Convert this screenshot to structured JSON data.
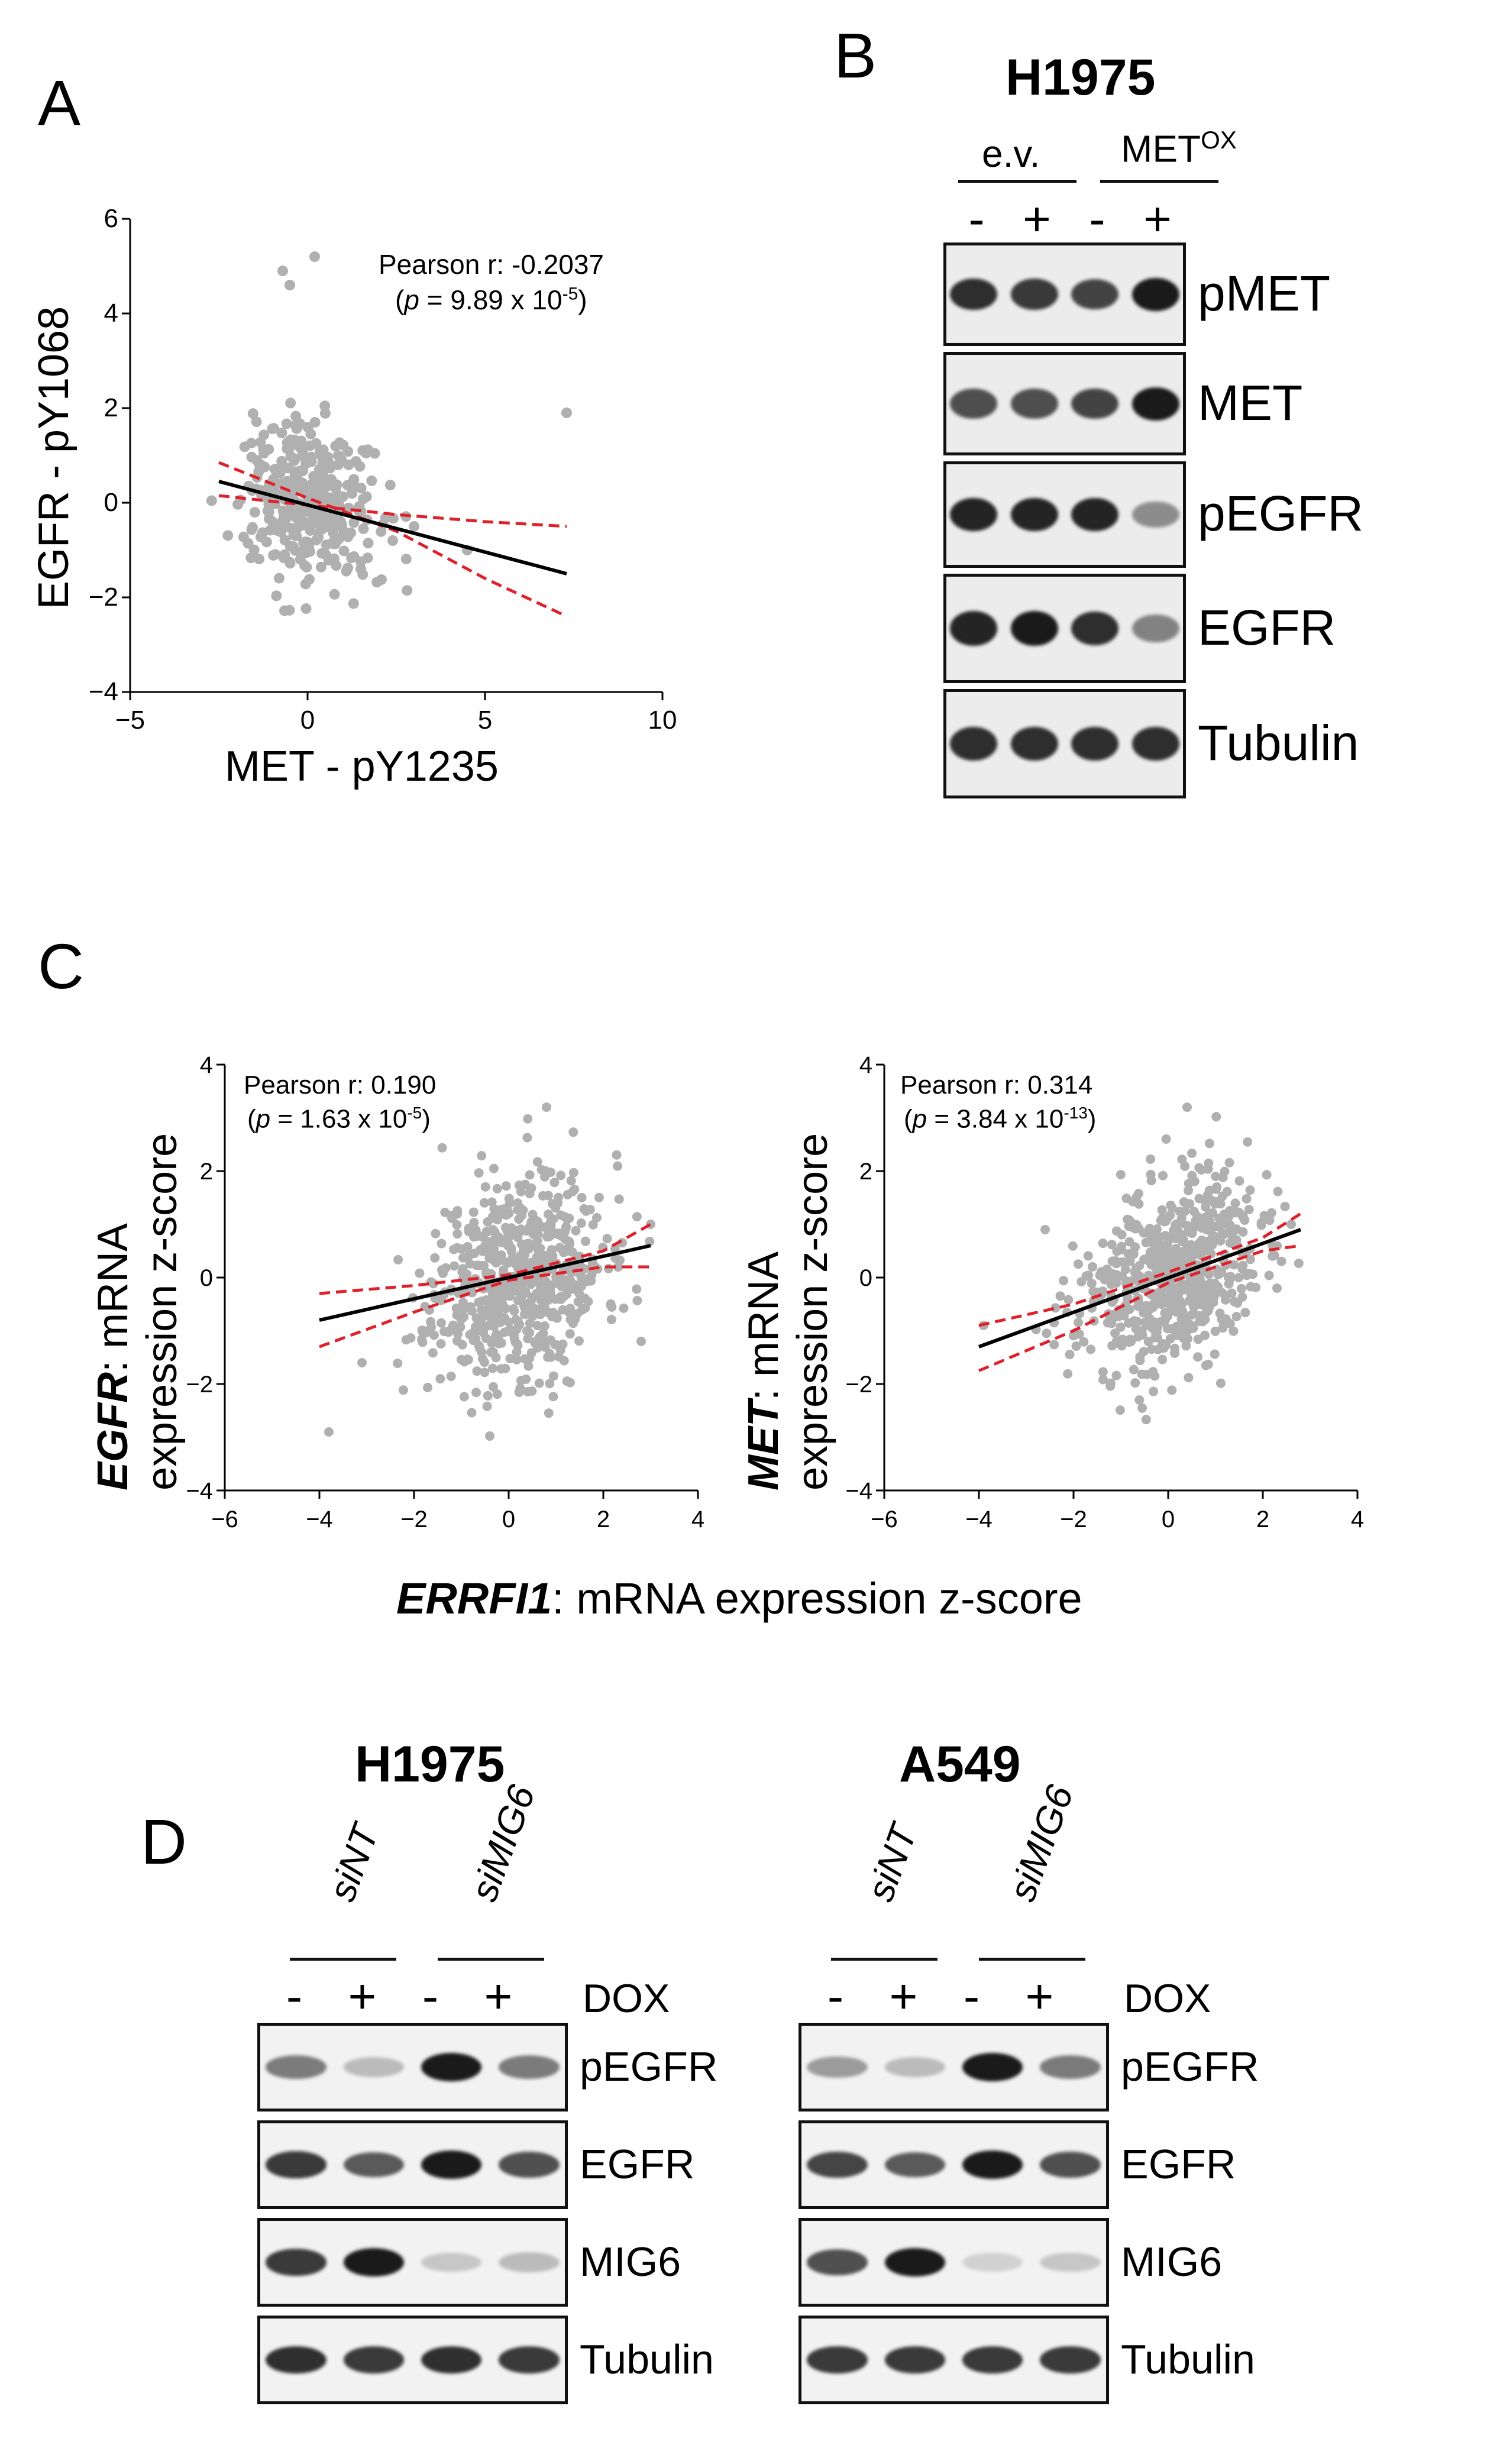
{
  "panels": {
    "A": {
      "letter": "A",
      "chart_data": {
        "type": "scatter",
        "xlabel": "MET - pY1235",
        "ylabel": "EGFR - pY1068",
        "xlim": [
          -5,
          10
        ],
        "ylim": [
          -4,
          6
        ],
        "xticks": [
          "−5",
          "0",
          "5",
          "10"
        ],
        "yticks": [
          "−4",
          "−2",
          "0",
          "2",
          "4",
          "6"
        ],
        "annotation_line1": "Pearson r: -0.2037",
        "annotation_p": "p",
        "annotation_eq": " = 9.89 x 10",
        "annotation_exp": "-5",
        "fit": {
          "x": [
            -2.5,
            7.3
          ],
          "y": [
            0.45,
            -1.5
          ]
        },
        "ci_upper": {
          "x": [
            -2.5,
            0,
            2.5,
            5,
            7.3
          ],
          "y": [
            0.15,
            -0.05,
            -0.25,
            -0.4,
            -0.5
          ]
        },
        "ci_lower": {
          "x": [
            -2.5,
            0,
            2.5,
            5,
            7.3
          ],
          "y": [
            0.85,
            0.1,
            -0.6,
            -1.6,
            -2.4
          ]
        },
        "point_color": "#b0b0b0",
        "fit_color": "#000000",
        "ci_color": "#e0202a"
      }
    },
    "B": {
      "letter": "B",
      "cell_line": "H1975",
      "groups": [
        {
          "label": "e.v."
        },
        {
          "label": "MET",
          "sup": "OX"
        }
      ],
      "treatments": [
        "-",
        "+",
        "-",
        "+"
      ],
      "blots": [
        {
          "label": "pMET",
          "intensities": [
            0.9,
            0.85,
            0.8,
            1.0
          ]
        },
        {
          "label": "MET",
          "intensities": [
            0.75,
            0.75,
            0.8,
            1.0
          ]
        },
        {
          "label": "pEGFR",
          "intensities": [
            0.95,
            0.95,
            0.95,
            0.45
          ]
        },
        {
          "label": "EGFR",
          "intensities": [
            0.95,
            1.0,
            0.9,
            0.5
          ]
        },
        {
          "label": "Tubulin",
          "intensities": [
            0.9,
            0.9,
            0.9,
            0.9
          ]
        }
      ]
    },
    "C": {
      "letter": "C",
      "shared_xlabel_gene": "ERRFI1",
      "shared_xlabel_rest": ": mRNA expression z-score",
      "charts": [
        {
          "type": "scatter",
          "ylabel_gene": "EGFR",
          "ylabel_rest": ": mRNA",
          "ylabel_line2": "expression z-score",
          "xlim": [
            -6,
            4
          ],
          "ylim": [
            -4,
            4
          ],
          "xticks": [
            "−6",
            "−4",
            "−2",
            "0",
            "2",
            "4"
          ],
          "yticks": [
            "−4",
            "−2",
            "0",
            "2",
            "4"
          ],
          "annotation_line1": "Pearson r: 0.190",
          "annotation_p": "p",
          "annotation_eq": " = 1.63 x 10",
          "annotation_exp": "-5",
          "fit": {
            "x": [
              -4,
              3
            ],
            "y": [
              -0.8,
              0.6
            ]
          },
          "ci_upper": {
            "x": [
              -4,
              -2,
              0,
              2,
              3
            ],
            "y": [
              -0.3,
              -0.15,
              0.05,
              0.5,
              1.0
            ]
          },
          "ci_lower": {
            "x": [
              -4,
              -2,
              0,
              2,
              3
            ],
            "y": [
              -1.3,
              -0.65,
              -0.05,
              0.2,
              0.2
            ]
          }
        },
        {
          "type": "scatter",
          "ylabel_gene": "MET",
          "ylabel_rest": ": mRNA",
          "ylabel_line2": "expression z-score",
          "xlim": [
            -6,
            4
          ],
          "ylim": [
            -4,
            4
          ],
          "xticks": [
            "−6",
            "−4",
            "−2",
            "0",
            "2",
            "4"
          ],
          "yticks": [
            "−4",
            "−2",
            "0",
            "2",
            "4"
          ],
          "annotation_line1": "Pearson r: 0.314",
          "annotation_p": "p",
          "annotation_eq": " = 3.84 x 10",
          "annotation_exp": "-13",
          "fit": {
            "x": [
              -4,
              2.8
            ],
            "y": [
              -1.3,
              0.9
            ]
          },
          "ci_upper": {
            "x": [
              -4,
              -2,
              0,
              2,
              2.8
            ],
            "y": [
              -0.9,
              -0.5,
              0.1,
              0.75,
              1.2
            ]
          },
          "ci_lower": {
            "x": [
              -4,
              -2,
              0,
              2,
              2.8
            ],
            "y": [
              -1.75,
              -1.0,
              -0.1,
              0.5,
              0.6
            ]
          }
        }
      ]
    },
    "D": {
      "letter": "D",
      "treatment_label": "DOX",
      "treatments": [
        "-",
        "+",
        "-",
        "+"
      ],
      "cells": [
        {
          "cell_line": "H1975",
          "groups": [
            "siNT",
            "siMIG6"
          ],
          "blots": [
            {
              "label": "pEGFR",
              "intensities": [
                0.55,
                0.25,
                1.0,
                0.55
              ]
            },
            {
              "label": "EGFR",
              "intensities": [
                0.85,
                0.7,
                1.0,
                0.75
              ]
            },
            {
              "label": "MIG6",
              "intensities": [
                0.85,
                1.0,
                0.2,
                0.25
              ]
            },
            {
              "label": "Tubulin",
              "intensities": [
                0.9,
                0.85,
                0.9,
                0.85
              ]
            }
          ]
        },
        {
          "cell_line": "A549",
          "groups": [
            "siNT",
            "siMIG6"
          ],
          "blots": [
            {
              "label": "pEGFR",
              "intensities": [
                0.4,
                0.25,
                1.0,
                0.55
              ]
            },
            {
              "label": "EGFR",
              "intensities": [
                0.8,
                0.7,
                1.0,
                0.75
              ]
            },
            {
              "label": "MIG6",
              "intensities": [
                0.75,
                1.0,
                0.15,
                0.2
              ]
            },
            {
              "label": "Tubulin",
              "intensities": [
                0.85,
                0.85,
                0.85,
                0.85
              ]
            }
          ]
        }
      ]
    }
  }
}
